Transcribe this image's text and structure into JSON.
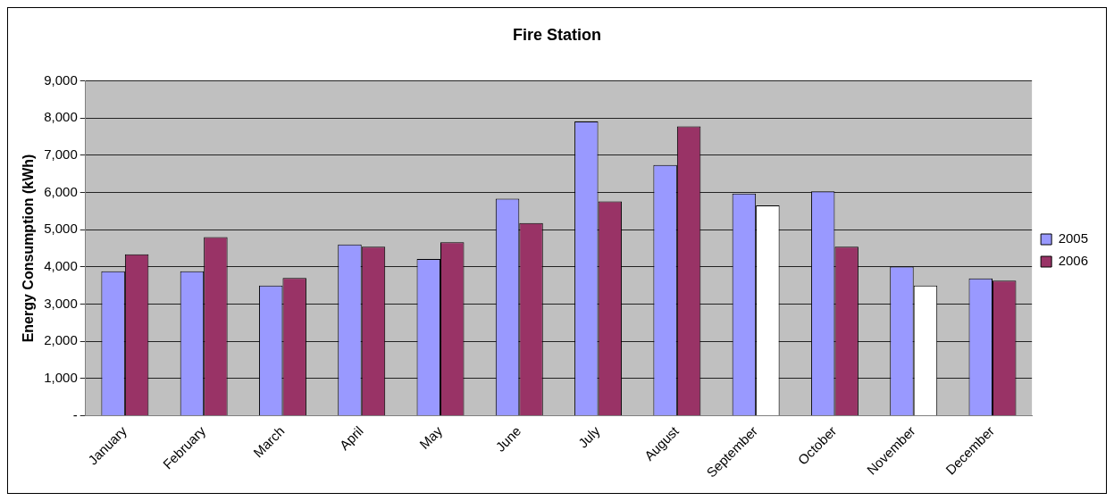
{
  "chart_data": {
    "type": "bar",
    "title": "Fire Station",
    "ylabel": "Energy Consumption (kWh)",
    "categories": [
      "January",
      "February",
      "March",
      "April",
      "May",
      "June",
      "July",
      "August",
      "September",
      "October",
      "November",
      "December"
    ],
    "series": [
      {
        "name": "2005",
        "color": "#9999ff",
        "values": [
          3880,
          3880,
          3500,
          4600,
          4210,
          5830,
          7910,
          6740,
          5970,
          6030,
          4010,
          3690
        ]
      },
      {
        "name": "2006",
        "color": "#993366",
        "colors": [
          "#993366",
          "#993366",
          "#993366",
          "#993366",
          "#993366",
          "#993366",
          "#993366",
          "#993366",
          "#ffffff",
          "#993366",
          "#ffffff",
          "#993366"
        ],
        "values": [
          4340,
          4800,
          3700,
          4540,
          4660,
          5180,
          5760,
          7780,
          5650,
          4540,
          3500,
          3630
        ]
      }
    ],
    "ylim": [
      0,
      9000
    ],
    "yticks": [
      {
        "value": 0,
        "label": "-"
      },
      {
        "value": 1000,
        "label": "1,000"
      },
      {
        "value": 2000,
        "label": "2,000"
      },
      {
        "value": 3000,
        "label": "3,000"
      },
      {
        "value": 4000,
        "label": "4,000"
      },
      {
        "value": 5000,
        "label": "5,000"
      },
      {
        "value": 6000,
        "label": "6,000"
      },
      {
        "value": 7000,
        "label": "7,000"
      },
      {
        "value": 8000,
        "label": "8,000"
      },
      {
        "value": 9000,
        "label": "9,000"
      }
    ],
    "grid": "y",
    "legend": "right"
  }
}
